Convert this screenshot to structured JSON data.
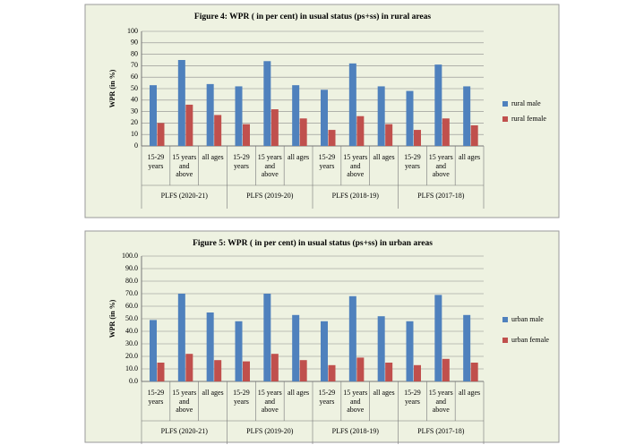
{
  "chart_data": [
    {
      "type": "bar",
      "title": "Figure 4: WPR ( in per cent) in usual status (ps+ss) in rural areas",
      "y_label": "WPR (in %)",
      "categories": [
        "15-29 years",
        "15 years and above",
        "all ages",
        "15-29 years",
        "15 years and above",
        "all ages",
        "15-29 years",
        "15 years and above",
        "all ages",
        "15-29 years",
        "15 years and above",
        "all ages"
      ],
      "groups": [
        "PLFS (2020-21)",
        "PLFS (2019-20)",
        "PLFS (2018-19)",
        "PLFS (2017-18)"
      ],
      "series": [
        {
          "name": "rural  male",
          "color": "#4f81bd",
          "values": [
            53,
            75,
            54,
            52,
            74,
            53,
            49,
            72,
            52,
            48,
            71,
            52
          ]
        },
        {
          "name": "rural female",
          "color": "#c0504d",
          "values": [
            20,
            36,
            27,
            19,
            32,
            24,
            14,
            26,
            19,
            14,
            24,
            18
          ]
        }
      ],
      "ylim": [
        0,
        100
      ],
      "yticks": [
        0,
        10,
        20,
        30,
        40,
        50,
        60,
        70,
        80,
        90,
        100
      ],
      "grid": true,
      "legend": "right"
    },
    {
      "type": "bar",
      "title": "Figure 5: WPR ( in per cent) in usual status (ps+ss) in urban areas",
      "y_label": "WPR (in %)",
      "categories": [
        "15-29 years",
        "15 years and above",
        "all ages",
        "15-29 years",
        "15 years and above",
        "all ages",
        "15-29 years",
        "15 years and above",
        "all ages",
        "15-29 years",
        "15 years and above",
        "all ages"
      ],
      "groups": [
        "PLFS (2020-21)",
        "PLFS (2019-20)",
        "PLFS (2018-19)",
        "PLFS (2017-18)"
      ],
      "series": [
        {
          "name": "urban male",
          "color": "#4f81bd",
          "values": [
            49,
            70,
            55,
            48,
            70,
            53,
            48,
            68,
            52,
            48,
            69,
            53
          ]
        },
        {
          "name": "urban female",
          "color": "#c0504d",
          "values": [
            15,
            22,
            17,
            16,
            22,
            17,
            13,
            19,
            15,
            13,
            18,
            15
          ]
        }
      ],
      "ylim": [
        0,
        100
      ],
      "yticks": [
        {
          "value": 0,
          "label": "0.0"
        },
        {
          "value": 10,
          "label": "10.0"
        },
        {
          "value": 20,
          "label": "20.0"
        },
        {
          "value": 30,
          "label": "30.0"
        },
        {
          "value": 40,
          "label": "40.0"
        },
        {
          "value": 50,
          "label": "50.0"
        },
        {
          "value": 60,
          "label": "60.0"
        },
        {
          "value": 70,
          "label": "70.0"
        },
        {
          "value": 80,
          "label": "80.0"
        },
        {
          "value": 90,
          "label": "90.0"
        },
        {
          "value": 100,
          "label": "100.0"
        }
      ],
      "grid": true,
      "legend": "right"
    }
  ]
}
